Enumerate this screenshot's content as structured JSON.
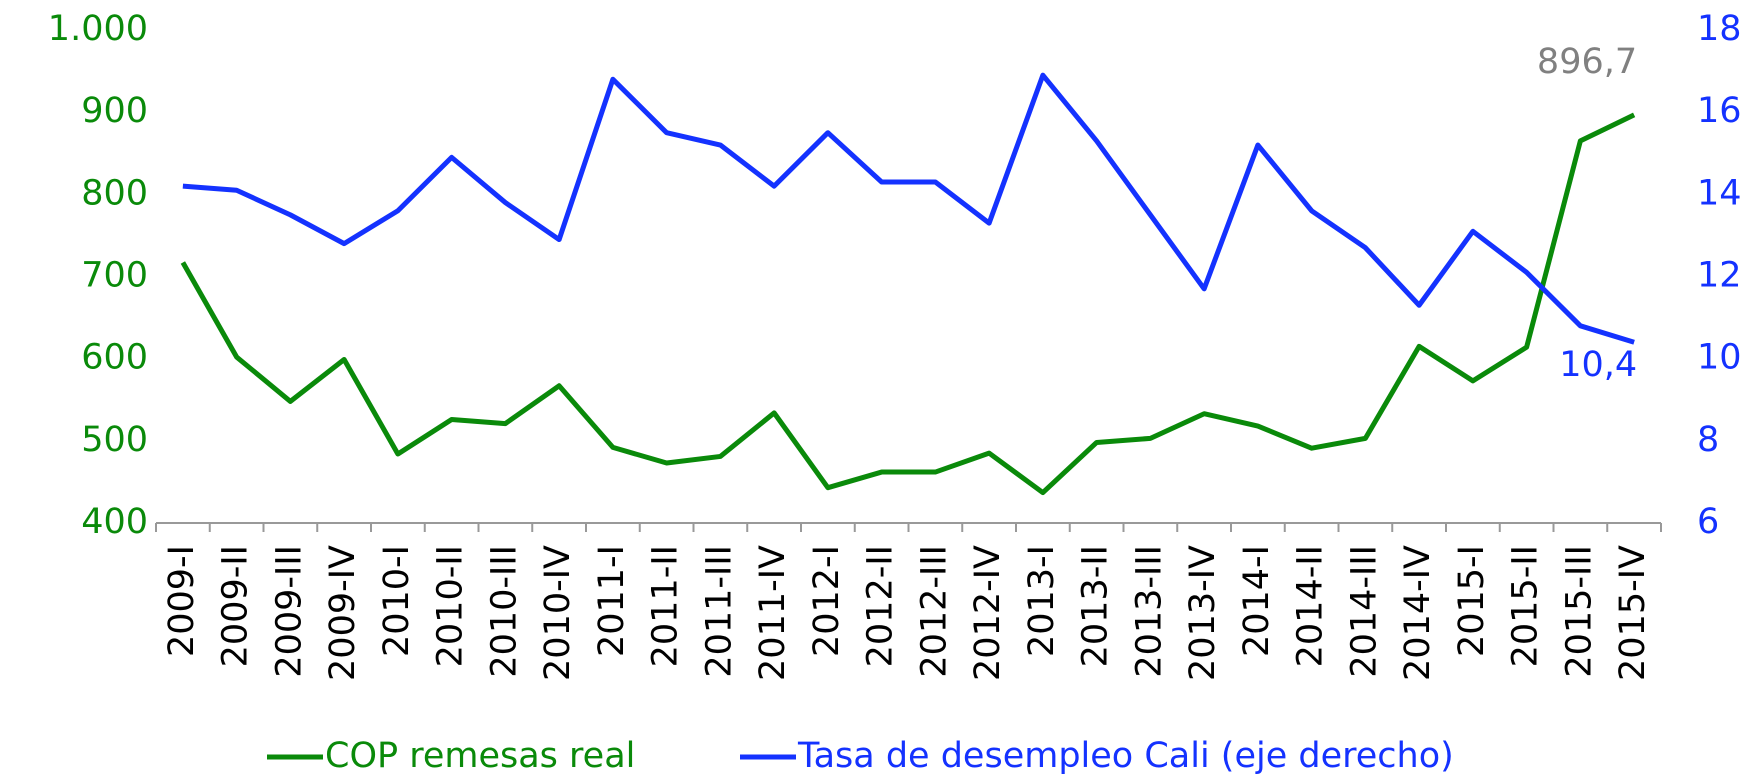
{
  "chart_data": {
    "type": "line",
    "categories": [
      "2009-I",
      "2009-II",
      "2009-III",
      "2009-IV",
      "2010-I",
      "2010-II",
      "2010-III",
      "2010-IV",
      "2011-I",
      "2011-II",
      "2011-III",
      "2011-IV",
      "2012-I",
      "2012-II",
      "2012-III",
      "2012-IV",
      "2013-I",
      "2013-II",
      "2013-III",
      "2013-IV",
      "2014-I",
      "2014-II",
      "2014-III",
      "2014-IV",
      "2015-I",
      "2015-II",
      "2015-III",
      "2015-IV"
    ],
    "series": [
      {
        "name": "COP remesas real",
        "color": "#0a8a0a",
        "values": [
          717,
          602,
          548,
          599,
          484,
          526,
          521,
          567,
          492,
          473,
          481,
          534,
          443,
          462,
          462,
          485,
          437,
          498,
          503,
          533,
          518,
          491,
          503,
          615,
          573,
          614,
          865,
          896.7
        ],
        "value_labels": [
          null,
          null,
          null,
          null,
          null,
          null,
          null,
          null,
          null,
          null,
          null,
          null,
          null,
          null,
          null,
          null,
          null,
          null,
          null,
          null,
          null,
          null,
          null,
          null,
          null,
          null,
          null,
          "896,7"
        ]
      },
      {
        "name": "Tasa de desempleo Cali (eje derecho)",
        "color": "#1432ff",
        "axis": "y2",
        "values": [
          14.2,
          14.1,
          13.5,
          12.8,
          13.6,
          14.9,
          13.8,
          12.9,
          16.8,
          15.5,
          15.2,
          14.2,
          15.5,
          14.3,
          14.3,
          13.3,
          16.9,
          15.3,
          13.5,
          11.7,
          15.2,
          13.6,
          12.7,
          11.3,
          13.1,
          12.1,
          10.8,
          10.4
        ],
        "value_labels": [
          null,
          null,
          null,
          null,
          null,
          null,
          null,
          null,
          null,
          null,
          null,
          null,
          null,
          null,
          null,
          null,
          null,
          null,
          null,
          null,
          null,
          null,
          null,
          null,
          null,
          null,
          null,
          "10,4"
        ]
      }
    ],
    "ylim": [
      400,
      1000
    ],
    "yticks": [
      400,
      500,
      600,
      700,
      800,
      900,
      {
        "value": 1000,
        "label": "1.000"
      }
    ],
    "y2lim": [
      6,
      18
    ],
    "y2ticks": [
      6,
      8,
      10,
      12,
      14,
      16,
      18
    ],
    "grid": false,
    "legend": "bottom"
  }
}
